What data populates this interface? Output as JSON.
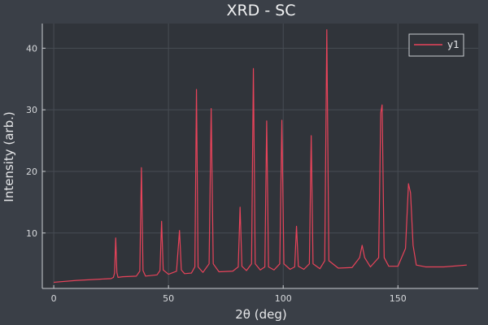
{
  "chart_data": {
    "type": "line",
    "title": "XRD - SC",
    "xlabel": "2θ (deg)",
    "ylabel": "Intensity (arb.)",
    "xlim": [
      -5,
      185
    ],
    "ylim": [
      1,
      44
    ],
    "xticks": [
      0,
      50,
      100,
      150
    ],
    "yticks": [
      10,
      20,
      30,
      40
    ],
    "grid": true,
    "legend": "top-right",
    "series": [
      {
        "name": "y1",
        "color": "#e8435a",
        "x": [
          0,
          10,
          20,
          25,
          26,
          26.5,
          27,
          27.5,
          28,
          30,
          36,
          37.5,
          38.2,
          38.9,
          40,
          45,
          46.3,
          47.0,
          47.7,
          50,
          53.5,
          54.8,
          55.6,
          57,
          60,
          61.5,
          62.2,
          62.9,
          65,
          67.7,
          68.6,
          69.5,
          72,
          78,
          80.4,
          81.2,
          82.0,
          84,
          86.2,
          87.0,
          87.8,
          90,
          92.0,
          92.8,
          93.6,
          96,
          98.5,
          99.4,
          100.3,
          103,
          105.0,
          105.8,
          106.6,
          109,
          111.4,
          112.2,
          113.0,
          116,
          118.1,
          119.0,
          119.9,
          124,
          130,
          133.3,
          134.4,
          135.5,
          138,
          141.6,
          142.5,
          143.1,
          144.0,
          146,
          150,
          153.3,
          154.6,
          155.5,
          156.6,
          158,
          162,
          170,
          180
        ],
        "values": [
          2.0,
          2.3,
          2.5,
          2.6,
          2.8,
          3.5,
          9.2,
          3.6,
          2.8,
          2.9,
          3.0,
          3.8,
          20.6,
          3.9,
          3.0,
          3.2,
          3.9,
          11.9,
          4.0,
          3.3,
          3.8,
          10.4,
          4.0,
          3.4,
          3.5,
          4.5,
          33.3,
          4.5,
          3.6,
          5.0,
          30.2,
          5.0,
          3.7,
          3.8,
          4.5,
          14.2,
          4.6,
          3.9,
          5.0,
          36.7,
          5.0,
          4.0,
          4.5,
          28.2,
          4.5,
          4.0,
          5.0,
          28.3,
          5.0,
          4.1,
          4.5,
          11.1,
          4.6,
          4.1,
          5.0,
          25.8,
          5.0,
          4.2,
          5.5,
          43.0,
          5.5,
          4.3,
          4.4,
          6.0,
          8.0,
          6.0,
          4.5,
          6.0,
          29.5,
          30.8,
          6.0,
          4.6,
          4.6,
          7.5,
          18.0,
          16.5,
          8.0,
          4.8,
          4.5,
          4.5,
          4.8
        ]
      }
    ]
  }
}
